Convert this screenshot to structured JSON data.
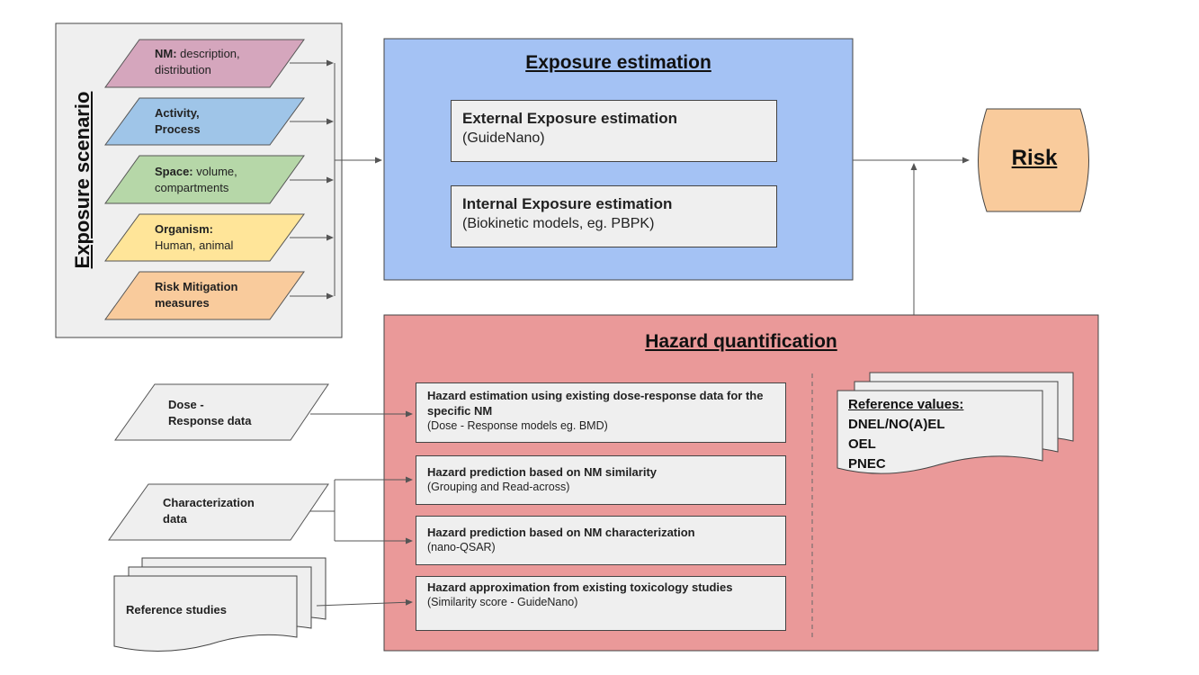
{
  "exposure_scenario": {
    "title": "Exposure scenario",
    "items": [
      {
        "bold": "NM:",
        "rest": " description,",
        "line2": "distribution",
        "color": "#d5a6bd"
      },
      {
        "bold": "Activity,",
        "rest": "",
        "line2": "Process",
        "line2_bold": true,
        "color": "#9fc5e8"
      },
      {
        "bold": "Space:",
        "rest": " volume,",
        "line2": "compartments",
        "color": "#b6d7a8"
      },
      {
        "bold": "Organism:",
        "rest": "",
        "line2": "Human, animal",
        "color": "#ffe599"
      },
      {
        "bold": "Risk Mitigation",
        "rest": "",
        "line2": "measures",
        "line2_bold": true,
        "color": "#f9cb9c"
      }
    ]
  },
  "exposure_estimation": {
    "title": "Exposure estimation",
    "color": "#a4c2f4",
    "external": {
      "title": "External Exposure estimation",
      "sub": "(GuideNano)"
    },
    "internal": {
      "title": "Internal Exposure estimation",
      "sub": "(Biokinetic models, eg. PBPK)"
    }
  },
  "risk": {
    "label": "Risk",
    "color": "#f9cb9c"
  },
  "hazard": {
    "title": "Hazard quantification",
    "color": "#ea9999",
    "boxes": [
      {
        "title": "Hazard estimation using existing dose-response data for the specific NM",
        "sub": "(Dose - Response models eg. BMD)"
      },
      {
        "title": "Hazard prediction based on NM similarity",
        "sub": "(Grouping and Read-across)"
      },
      {
        "title": "Hazard prediction based on NM characterization",
        "sub": "(nano-QSAR)"
      },
      {
        "title": "Hazard approximation from existing toxicology studies",
        "sub": "(Similarity score - GuideNano)"
      }
    ],
    "reference_values": {
      "heading": "Reference values:",
      "items": [
        "DNEL/NO(A)EL",
        "OEL",
        "PNEC"
      ]
    }
  },
  "inputs": {
    "dose": {
      "line1": "Dose -",
      "line2": "Response data"
    },
    "characterization": {
      "line1": "Characterization",
      "line2": "data"
    },
    "reference_studies": {
      "label": "Reference studies"
    }
  }
}
